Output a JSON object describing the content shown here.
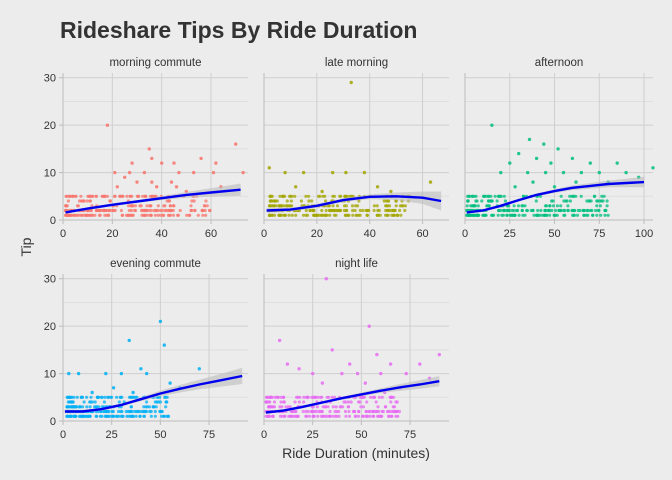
{
  "chart_data": {
    "type": "scatter",
    "title": "Rideshare Tips By Ride Duration",
    "xlabel": "Ride Duration (minutes)",
    "ylabel": "Tip",
    "ylim": [
      0,
      31
    ],
    "grid": true,
    "legend": "none",
    "trend_color": "#0000ee",
    "band_color": "#bdbdbd",
    "panels": [
      {
        "name": "morning commute",
        "color": "#f8766d",
        "xlim": [
          0,
          75
        ],
        "xticks": [
          "0",
          "20",
          "40",
          "60"
        ],
        "xtick_values": [
          0,
          20,
          40,
          60
        ],
        "trend": [
          [
            1,
            1.6
          ],
          [
            10,
            2.4
          ],
          [
            20,
            3.2
          ],
          [
            30,
            3.9
          ],
          [
            40,
            4.6
          ],
          [
            50,
            5.3
          ],
          [
            60,
            5.8
          ],
          [
            72,
            6.4
          ]
        ],
        "band": [
          0.3,
          0.3,
          0.3,
          0.3,
          0.4,
          0.6,
          0.9,
          1.3
        ],
        "points": [
          [
            18,
            20
          ],
          [
            70,
            16
          ],
          [
            35,
            15
          ],
          [
            56,
            13
          ],
          [
            36,
            13
          ],
          [
            28,
            12
          ],
          [
            40,
            12
          ],
          [
            45,
            12
          ],
          [
            62,
            12
          ],
          [
            21,
            10
          ],
          [
            27,
            10
          ],
          [
            33,
            10
          ],
          [
            47,
            10
          ],
          [
            53,
            10
          ],
          [
            61,
            10
          ],
          [
            73,
            10
          ],
          [
            25,
            9
          ],
          [
            30,
            8
          ],
          [
            36,
            8
          ],
          [
            44,
            8
          ],
          [
            22,
            7
          ],
          [
            38,
            7
          ],
          [
            46,
            7
          ],
          [
            64,
            7
          ],
          [
            50,
            6
          ]
        ],
        "bulk": {
          "x": [
            1,
            60
          ],
          "y": [
            0,
            5
          ]
        }
      },
      {
        "name": "late morning",
        "color": "#a3a500",
        "xlim": [
          0,
          70
        ],
        "xticks": [
          "0",
          "20",
          "40",
          "60"
        ],
        "xtick_values": [
          0,
          20,
          40,
          60
        ],
        "trend": [
          [
            1,
            2.0
          ],
          [
            10,
            2.2
          ],
          [
            20,
            3.0
          ],
          [
            30,
            4.2
          ],
          [
            40,
            4.9
          ],
          [
            50,
            5.0
          ],
          [
            60,
            4.7
          ],
          [
            67,
            4.0
          ]
        ],
        "band": [
          0.5,
          0.4,
          0.4,
          0.4,
          0.5,
          0.8,
          1.3,
          2.0
        ],
        "points": [
          [
            33,
            29
          ],
          [
            2,
            11
          ],
          [
            8,
            10
          ],
          [
            15,
            10
          ],
          [
            26,
            10
          ],
          [
            31,
            10
          ],
          [
            38,
            10
          ],
          [
            63,
            8
          ],
          [
            43,
            7
          ],
          [
            12,
            7
          ],
          [
            22,
            6
          ],
          [
            55,
            5
          ],
          [
            48,
            6
          ]
        ],
        "bulk": {
          "x": [
            2,
            55
          ],
          "y": [
            0,
            5
          ]
        }
      },
      {
        "name": "afternoon",
        "color": "#00bf7d",
        "xlim": [
          0,
          105
        ],
        "xticks": [
          "0",
          "25",
          "50",
          "75",
          "100"
        ],
        "xtick_values": [
          0,
          25,
          50,
          75,
          100
        ],
        "trend": [
          [
            1,
            1.6
          ],
          [
            10,
            2.0
          ],
          [
            20,
            3.0
          ],
          [
            30,
            4.2
          ],
          [
            40,
            5.3
          ],
          [
            50,
            6.1
          ],
          [
            60,
            6.8
          ],
          [
            70,
            7.2
          ],
          [
            80,
            7.6
          ],
          [
            90,
            7.8
          ],
          [
            100,
            8.0
          ]
        ],
        "band": [
          0.3,
          0.3,
          0.3,
          0.3,
          0.3,
          0.4,
          0.5,
          0.6,
          0.7,
          0.9,
          1.1
        ],
        "points": [
          [
            15,
            20
          ],
          [
            36,
            17
          ],
          [
            44,
            16
          ],
          [
            52,
            15
          ],
          [
            30,
            14
          ],
          [
            40,
            13
          ],
          [
            60,
            13
          ],
          [
            25,
            12
          ],
          [
            48,
            12
          ],
          [
            70,
            12
          ],
          [
            85,
            12
          ],
          [
            105,
            11
          ],
          [
            20,
            10
          ],
          [
            35,
            10
          ],
          [
            45,
            10
          ],
          [
            55,
            10
          ],
          [
            65,
            10
          ],
          [
            75,
            10
          ],
          [
            90,
            10
          ],
          [
            97,
            9
          ],
          [
            80,
            8
          ],
          [
            38,
            8
          ],
          [
            62,
            8
          ],
          [
            28,
            7
          ],
          [
            50,
            7
          ]
        ],
        "bulk": {
          "x": [
            1,
            80
          ],
          "y": [
            0,
            5
          ]
        }
      },
      {
        "name": "evening commute",
        "color": "#00b0f6",
        "xlim": [
          0,
          95
        ],
        "xticks": [
          "0",
          "25",
          "50",
          "75"
        ],
        "xtick_values": [
          0,
          25,
          50,
          75
        ],
        "trend": [
          [
            1,
            2.0
          ],
          [
            10,
            2.0
          ],
          [
            20,
            2.5
          ],
          [
            30,
            3.4
          ],
          [
            40,
            4.6
          ],
          [
            50,
            5.8
          ],
          [
            60,
            6.8
          ],
          [
            70,
            7.7
          ],
          [
            80,
            8.5
          ],
          [
            92,
            9.5
          ]
        ],
        "band": [
          0.4,
          0.3,
          0.3,
          0.3,
          0.4,
          0.6,
          0.8,
          1.0,
          1.3,
          1.7
        ],
        "points": [
          [
            50,
            21
          ],
          [
            52,
            16
          ],
          [
            34,
            17
          ],
          [
            40,
            11
          ],
          [
            3,
            10
          ],
          [
            8,
            10
          ],
          [
            22,
            10
          ],
          [
            30,
            10
          ],
          [
            43,
            10
          ],
          [
            70,
            11
          ],
          [
            55,
            8
          ],
          [
            60,
            7
          ],
          [
            26,
            7
          ],
          [
            36,
            6
          ],
          [
            15,
            6
          ]
        ],
        "bulk": {
          "x": [
            2,
            55
          ],
          "y": [
            0,
            5
          ]
        }
      },
      {
        "name": "night life",
        "color": "#e76bf3",
        "xlim": [
          0,
          95
        ],
        "xticks": [
          "0",
          "25",
          "50",
          "75"
        ],
        "xtick_values": [
          0,
          25,
          50,
          75
        ],
        "trend": [
          [
            1,
            1.8
          ],
          [
            10,
            2.2
          ],
          [
            20,
            3.0
          ],
          [
            30,
            3.9
          ],
          [
            40,
            4.8
          ],
          [
            50,
            5.6
          ],
          [
            60,
            6.4
          ],
          [
            70,
            7.1
          ],
          [
            80,
            7.7
          ],
          [
            90,
            8.4
          ]
        ],
        "band": [
          0.3,
          0.3,
          0.3,
          0.3,
          0.3,
          0.4,
          0.5,
          0.7,
          0.9,
          1.1
        ],
        "points": [
          [
            32,
            30
          ],
          [
            54,
            20
          ],
          [
            8,
            17
          ],
          [
            35,
            15
          ],
          [
            58,
            14
          ],
          [
            90,
            14
          ],
          [
            12,
            12
          ],
          [
            44,
            12
          ],
          [
            65,
            12
          ],
          [
            80,
            12
          ],
          [
            18,
            11
          ],
          [
            25,
            10
          ],
          [
            40,
            10
          ],
          [
            48,
            10
          ],
          [
            60,
            10
          ],
          [
            73,
            10
          ],
          [
            85,
            9
          ],
          [
            30,
            8
          ],
          [
            52,
            8
          ],
          [
            70,
            7
          ],
          [
            62,
            6
          ]
        ],
        "bulk": {
          "x": [
            1,
            70
          ],
          "y": [
            0,
            5
          ]
        }
      }
    ]
  }
}
